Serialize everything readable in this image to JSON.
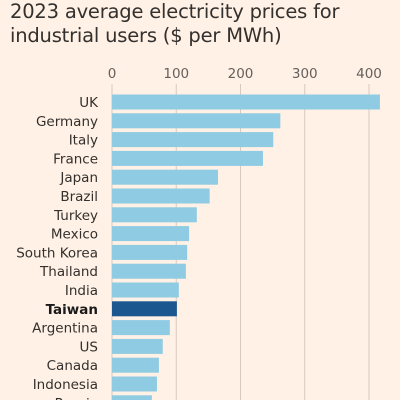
{
  "title": "2023 average electricity prices for industrial users ($ per MWh)",
  "chart_data": {
    "type": "bar",
    "orientation": "horizontal",
    "title": "2023 average electricity prices for industrial users ($ per MWh)",
    "xlabel": "",
    "ylabel": "",
    "xlim": [
      0,
      420
    ],
    "xticks": [
      0,
      100,
      200,
      300,
      400
    ],
    "grid": true,
    "categories": [
      "UK",
      "Germany",
      "Italy",
      "France",
      "Japan",
      "Brazil",
      "Turkey",
      "Mexico",
      "South Korea",
      "Thailand",
      "India",
      "Taiwan",
      "Argentina",
      "US",
      "Canada",
      "Indonesia",
      "Russia"
    ],
    "values": [
      417,
      262,
      251,
      235,
      165,
      152,
      132,
      120,
      117,
      115,
      104,
      101,
      90,
      79,
      73,
      70,
      62
    ],
    "highlight": "Taiwan",
    "colors": {
      "bar": "#8fcbe3",
      "highlight": "#1d578f",
      "background": "#fff1e5"
    }
  }
}
